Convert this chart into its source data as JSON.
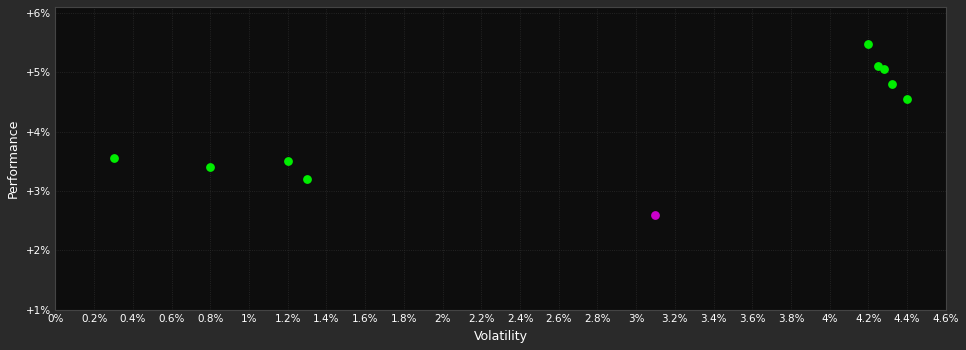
{
  "background_color": "#2a2a2a",
  "plot_bg_color": "#0d0d0d",
  "text_color": "#ffffff",
  "xlabel": "Volatility",
  "ylabel": "Performance",
  "xlim": [
    0.0,
    0.046
  ],
  "ylim": [
    0.01,
    0.061
  ],
  "xticks": [
    0.0,
    0.002,
    0.004,
    0.006,
    0.008,
    0.01,
    0.012,
    0.014,
    0.016,
    0.018,
    0.02,
    0.022,
    0.024,
    0.026,
    0.028,
    0.03,
    0.032,
    0.034,
    0.036,
    0.038,
    0.04,
    0.042,
    0.044,
    0.046
  ],
  "yticks": [
    0.01,
    0.02,
    0.03,
    0.04,
    0.05,
    0.06
  ],
  "green_points": [
    [
      0.003,
      0.0355
    ],
    [
      0.008,
      0.034
    ],
    [
      0.012,
      0.035
    ],
    [
      0.013,
      0.032
    ],
    [
      0.042,
      0.0548
    ],
    [
      0.0425,
      0.051
    ],
    [
      0.0428,
      0.0505
    ],
    [
      0.0432,
      0.048
    ],
    [
      0.044,
      0.0455
    ]
  ],
  "magenta_points": [
    [
      0.031,
      0.026
    ]
  ],
  "point_size": 28,
  "grid_color": "#2a2a2a",
  "grid_linestyle": "dotted"
}
